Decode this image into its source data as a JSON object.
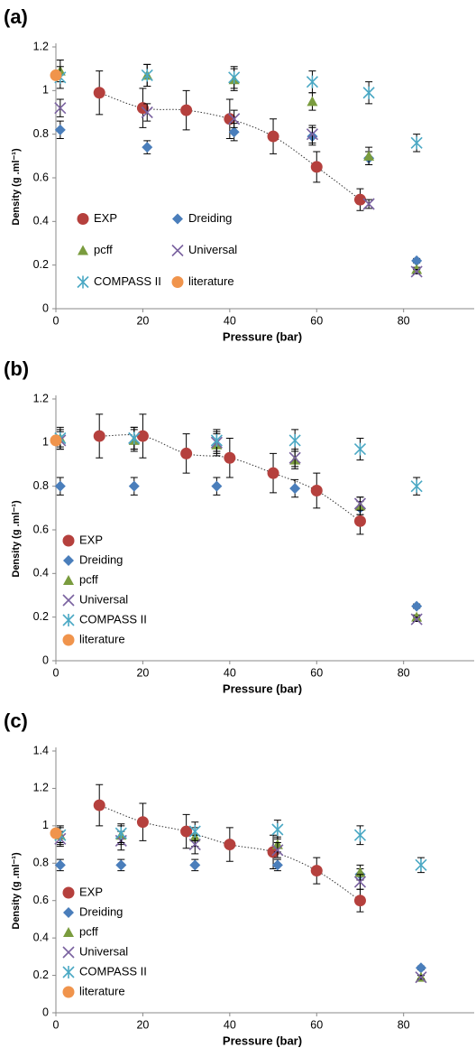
{
  "chart_data": [
    {
      "type": "scatter",
      "label": "(a)",
      "xlabel": "Pressure (bar)",
      "ylabel": "Density (g .ml⁻¹)",
      "xlim": [
        0,
        95
      ],
      "xticks": [
        0,
        20,
        40,
        60,
        80
      ],
      "ylim": [
        0,
        1.2
      ],
      "yticks": [
        0,
        0.2,
        0.4,
        0.6,
        0.8,
        1,
        1.2
      ],
      "legend": "lower left",
      "legend_columns": 2,
      "series": [
        {
          "name": "EXP",
          "color": "#b5403d",
          "marker": "circle",
          "trendline": true,
          "x": [
            10,
            20,
            30,
            40,
            50,
            60,
            70
          ],
          "values": [
            0.99,
            0.92,
            0.91,
            0.87,
            0.79,
            0.65,
            0.5
          ],
          "errors": [
            0.1,
            0.09,
            0.09,
            0.09,
            0.08,
            0.07,
            0.05
          ]
        },
        {
          "name": "Dreiding",
          "color": "#4a7ebb",
          "marker": "diamond",
          "x": [
            1,
            21,
            41,
            59,
            72,
            83
          ],
          "values": [
            0.82,
            0.74,
            0.81,
            0.79,
            0.69,
            0.22
          ],
          "errors": [
            0.04,
            0.03,
            0.04,
            0.04,
            0.03,
            0.01
          ]
        },
        {
          "name": "pcff",
          "color": "#7a9c3e",
          "marker": "triangle",
          "x": [
            1,
            21,
            41,
            59,
            72,
            83
          ],
          "values": [
            1.09,
            1.07,
            1.05,
            0.95,
            0.7,
            0.18
          ],
          "errors": [
            0.05,
            0.05,
            0.05,
            0.04,
            0.04,
            0.01
          ]
        },
        {
          "name": "Universal",
          "color": "#7a62a0",
          "marker": "x",
          "x": [
            1,
            21,
            41,
            59,
            72,
            83
          ],
          "values": [
            0.92,
            0.9,
            0.87,
            0.8,
            0.48,
            0.17
          ],
          "errors": [
            0.04,
            0.04,
            0.04,
            0.04,
            0.02,
            0.01
          ]
        },
        {
          "name": "COMPASS II",
          "color": "#4aa8c4",
          "marker": "star",
          "x": [
            1,
            21,
            41,
            59,
            72,
            83
          ],
          "values": [
            1.06,
            1.07,
            1.06,
            1.04,
            0.99,
            0.76
          ],
          "errors": [
            0.05,
            0.05,
            0.05,
            0.05,
            0.05,
            0.04
          ]
        },
        {
          "name": "literature",
          "color": "#f0944c",
          "marker": "circle",
          "x": [
            0
          ],
          "values": [
            1.07
          ]
        }
      ]
    },
    {
      "type": "scatter",
      "label": "(b)",
      "xlabel": "Pressure (bar)",
      "ylabel": "Density (g .ml⁻¹)",
      "xlim": [
        0,
        95
      ],
      "xticks": [
        0,
        20,
        40,
        60,
        80
      ],
      "ylim": [
        0,
        1.2
      ],
      "yticks": [
        0,
        0.2,
        0.4,
        0.6,
        0.8,
        1,
        1.2
      ],
      "legend": "lower left",
      "legend_columns": 1,
      "series": [
        {
          "name": "EXP",
          "color": "#b5403d",
          "marker": "circle",
          "trendline": true,
          "x": [
            10,
            20,
            30,
            40,
            50,
            60,
            70
          ],
          "values": [
            1.03,
            1.03,
            0.95,
            0.93,
            0.86,
            0.78,
            0.64
          ],
          "errors": [
            0.1,
            0.1,
            0.09,
            0.09,
            0.09,
            0.08,
            0.06
          ]
        },
        {
          "name": "Dreiding",
          "color": "#4a7ebb",
          "marker": "diamond",
          "x": [
            1,
            18,
            37,
            55,
            70,
            83
          ],
          "values": [
            0.8,
            0.8,
            0.8,
            0.79,
            0.7,
            0.25
          ],
          "errors": [
            0.04,
            0.04,
            0.04,
            0.04,
            0.03,
            0.01
          ]
        },
        {
          "name": "pcff",
          "color": "#7a9c3e",
          "marker": "triangle",
          "x": [
            1,
            18,
            37,
            55,
            70,
            83
          ],
          "values": [
            1.02,
            1.01,
            0.99,
            0.92,
            0.71,
            0.2
          ],
          "errors": [
            0.04,
            0.05,
            0.05,
            0.04,
            0.04,
            0.01
          ]
        },
        {
          "name": "Universal",
          "color": "#7a62a0",
          "marker": "x",
          "x": [
            1,
            18,
            37,
            55,
            70,
            83
          ],
          "values": [
            1.01,
            1.02,
            1.0,
            0.93,
            0.72,
            0.19
          ],
          "errors": [
            0.04,
            0.05,
            0.05,
            0.04,
            0.03,
            0.01
          ]
        },
        {
          "name": "COMPASS II",
          "color": "#4aa8c4",
          "marker": "star",
          "x": [
            1,
            18,
            37,
            55,
            70,
            83
          ],
          "values": [
            1.02,
            1.02,
            1.01,
            1.01,
            0.97,
            0.8
          ],
          "errors": [
            0.05,
            0.05,
            0.05,
            0.05,
            0.05,
            0.04
          ]
        },
        {
          "name": "literature",
          "color": "#f0944c",
          "marker": "circle",
          "x": [
            0
          ],
          "values": [
            1.01
          ]
        }
      ]
    },
    {
      "type": "scatter",
      "label": "(c)",
      "xlabel": "Pressure (bar)",
      "ylabel": "Density (g .ml⁻¹)",
      "xlim": [
        0,
        95
      ],
      "xticks": [
        0,
        20,
        40,
        60,
        80
      ],
      "ylim": [
        0,
        1.4
      ],
      "yticks": [
        0,
        0.2,
        0.4,
        0.6,
        0.8,
        1,
        1.2,
        1.4
      ],
      "legend": "lower left",
      "legend_columns": 1,
      "series": [
        {
          "name": "EXP",
          "color": "#b5403d",
          "marker": "circle",
          "trendline": true,
          "x": [
            10,
            20,
            30,
            40,
            50,
            60,
            70
          ],
          "values": [
            1.11,
            1.02,
            0.97,
            0.9,
            0.86,
            0.76,
            0.6
          ],
          "errors": [
            0.11,
            0.1,
            0.09,
            0.09,
            0.09,
            0.07,
            0.06
          ]
        },
        {
          "name": "Dreiding",
          "color": "#4a7ebb",
          "marker": "diamond",
          "x": [
            1,
            15,
            32,
            51,
            70,
            84
          ],
          "values": [
            0.79,
            0.79,
            0.79,
            0.79,
            0.74,
            0.24
          ],
          "errors": [
            0.03,
            0.03,
            0.03,
            0.03,
            0.03,
            0.01
          ]
        },
        {
          "name": "pcff",
          "color": "#7a9c3e",
          "marker": "triangle",
          "x": [
            1,
            15,
            32,
            51,
            70,
            84
          ],
          "values": [
            0.95,
            0.95,
            0.94,
            0.9,
            0.75,
            0.19
          ],
          "errors": [
            0.04,
            0.05,
            0.05,
            0.04,
            0.04,
            0.01
          ]
        },
        {
          "name": "Universal",
          "color": "#7a62a0",
          "marker": "x",
          "x": [
            1,
            15,
            32,
            51,
            70,
            84
          ],
          "values": [
            0.93,
            0.92,
            0.9,
            0.87,
            0.7,
            0.19
          ],
          "errors": [
            0.04,
            0.05,
            0.05,
            0.04,
            0.04,
            0.01
          ]
        },
        {
          "name": "COMPASS II",
          "color": "#4aa8c4",
          "marker": "star",
          "x": [
            1,
            15,
            32,
            51,
            70,
            84
          ],
          "values": [
            0.95,
            0.96,
            0.97,
            0.98,
            0.95,
            0.79
          ],
          "errors": [
            0.05,
            0.05,
            0.05,
            0.05,
            0.05,
            0.04
          ]
        },
        {
          "name": "literature",
          "color": "#f0944c",
          "marker": "circle",
          "x": [
            0
          ],
          "values": [
            0.96
          ]
        }
      ]
    }
  ]
}
